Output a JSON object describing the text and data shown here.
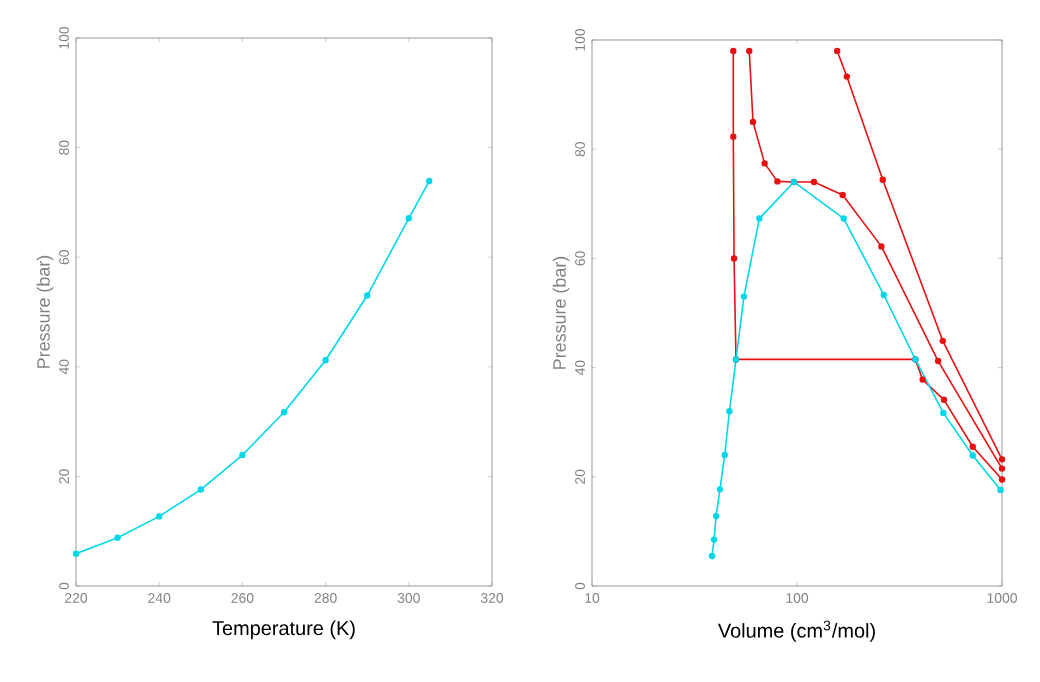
{
  "chart_data": [
    {
      "type": "line",
      "xlabel": "Temperature (K)",
      "ylabel": "Pressure (bar)",
      "xlim": [
        220,
        320
      ],
      "ylim": [
        0,
        100
      ],
      "xticks": [
        220,
        240,
        260,
        280,
        300,
        320
      ],
      "yticks": [
        0,
        20,
        40,
        60,
        80,
        100
      ],
      "marker": "circle",
      "series": [
        {
          "color": "#00d8e8",
          "x": [
            220,
            230,
            240,
            250,
            260,
            270,
            280,
            290,
            300,
            304.9
          ],
          "values": [
            5.9,
            8.8,
            12.7,
            17.6,
            23.9,
            31.7,
            41.2,
            53.0,
            67.1,
            73.9
          ]
        }
      ]
    },
    {
      "type": "line",
      "xlabel": "Volume (cm$^{3}$/mol)",
      "ylabel": "Pressure (bar)",
      "log": "x",
      "xlim": [
        10,
        1000
      ],
      "ylim": [
        0,
        100
      ],
      "xticks": [
        10,
        100,
        1000
      ],
      "yticks": [
        0,
        20,
        40,
        60,
        80,
        100
      ],
      "marker": "circle",
      "series": [
        {
          "color": "#e81010",
          "x": [
            48.9,
            48.9,
            49.3,
            50.4,
            378,
            410,
            521,
            720,
            1000
          ],
          "values": [
            98,
            82.3,
            60,
            41.5,
            41.5,
            37.8,
            34.1,
            25.5,
            19.5
          ]
        },
        {
          "color": "#e81010",
          "x": [
            58.5,
            61,
            69.5,
            80.2,
            96.6,
            121,
            167,
            258,
            488,
            1000
          ],
          "values": [
            98,
            85,
            77.4,
            74.1,
            74.0,
            74.0,
            71.6,
            62.2,
            41.2,
            21.5
          ]
        },
        {
          "color": "#e81010",
          "x": [
            157,
            175,
            262,
            514,
            1000
          ],
          "values": [
            98,
            93.3,
            74.4,
            44.9,
            23.2
          ]
        },
        {
          "color": "#00d8e8",
          "x": [
            38.5,
            39.4,
            40.3,
            42.1,
            44.4,
            46.8,
            50.4,
            55.1,
            65.5,
            96.6,
            169,
            265,
            378,
            517,
            720,
            984
          ],
          "values": [
            5.5,
            8.5,
            12.8,
            17.7,
            24.0,
            32.0,
            41.5,
            53.0,
            67.3,
            74.0,
            67.3,
            53.3,
            41.5,
            31.7,
            23.9,
            17.6
          ]
        }
      ]
    }
  ]
}
